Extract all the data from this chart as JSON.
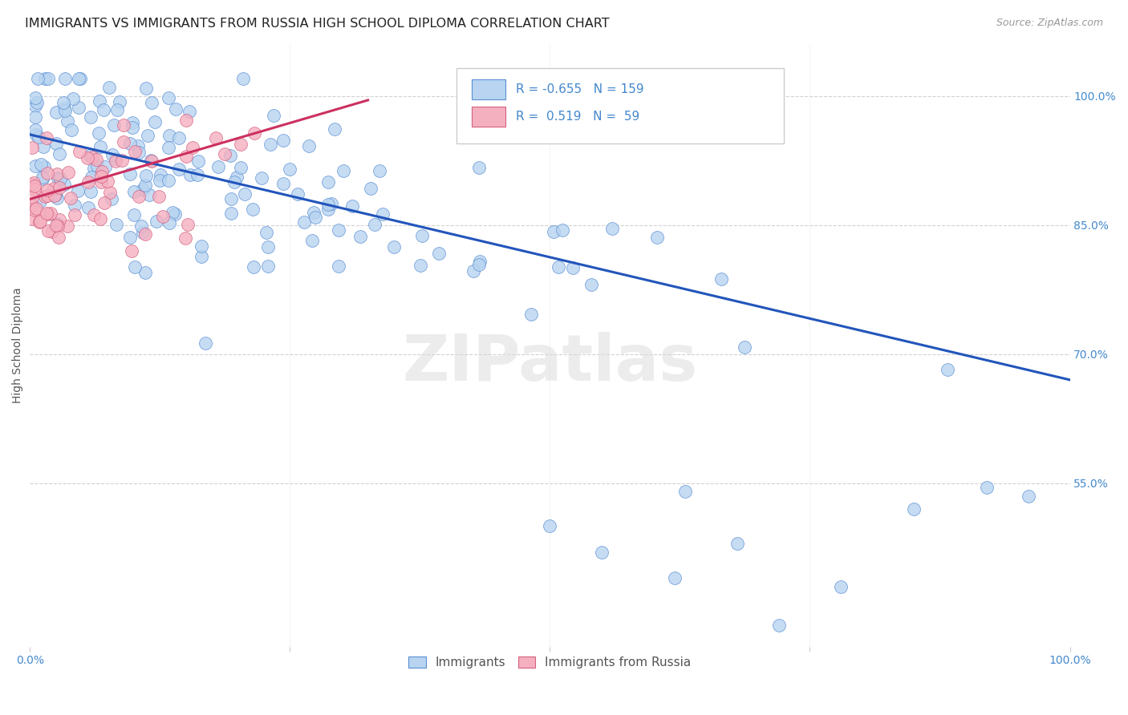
{
  "title": "IMMIGRANTS VS IMMIGRANTS FROM RUSSIA HIGH SCHOOL DIPLOMA CORRELATION CHART",
  "source": "Source: ZipAtlas.com",
  "ylabel": "High School Diploma",
  "legend_labels": [
    "Immigrants",
    "Immigrants from Russia"
  ],
  "blue_R": -0.655,
  "blue_N": 159,
  "pink_R": 0.519,
  "pink_N": 59,
  "blue_color": "#b8d4f0",
  "blue_edge_color": "#5a8fd4",
  "blue_line_color": "#2255bb",
  "pink_color": "#f5b0c0",
  "pink_edge_color": "#d46080",
  "pink_line_color": "#cc3060",
  "blue_line_x": [
    0.0,
    1.0
  ],
  "blue_line_y": [
    0.955,
    0.67
  ],
  "pink_line_x": [
    0.0,
    0.325
  ],
  "pink_line_y": [
    0.88,
    0.995
  ],
  "xlim": [
    0.0,
    1.0
  ],
  "ylim": [
    0.36,
    1.06
  ],
  "xtick_positions": [
    0.0,
    0.25,
    0.5,
    0.75,
    1.0
  ],
  "xtick_labels": [
    "0.0%",
    "",
    "",
    "",
    "100.0%"
  ],
  "ytick_positions": [
    1.0,
    0.85,
    0.7,
    0.55
  ],
  "ytick_labels": [
    "100.0%",
    "85.0%",
    "70.0%",
    "55.0%"
  ],
  "watermark": "ZIPatlas",
  "title_fontsize": 11.5,
  "ylabel_fontsize": 10,
  "tick_fontsize": 10,
  "legend_fontsize": 11,
  "source_fontsize": 9,
  "background_color": "#ffffff",
  "grid_color": "#cccccc",
  "tick_color": "#4488cc"
}
